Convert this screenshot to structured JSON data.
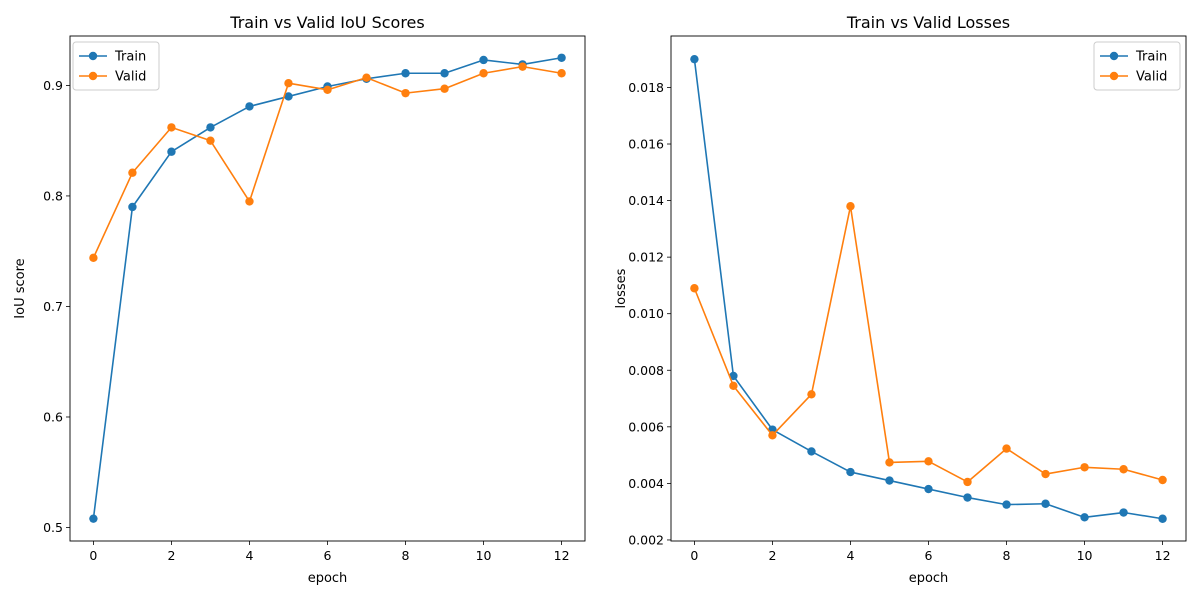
{
  "chart_data": [
    {
      "type": "line",
      "title": "Train vs Valid IoU Scores",
      "xlabel": "epoch",
      "ylabel": "IoU score",
      "x": [
        0,
        1,
        2,
        3,
        4,
        5,
        6,
        7,
        8,
        9,
        10,
        11,
        12
      ],
      "xlim": [
        -0.6,
        12.6
      ],
      "ylim": [
        0.4878,
        0.9447
      ],
      "xticks": [
        0,
        2,
        4,
        6,
        8,
        10,
        12
      ],
      "xtick_labels": [
        "0",
        "2",
        "4",
        "6",
        "8",
        "10",
        "12"
      ],
      "yticks": [
        0.5,
        0.6,
        0.7,
        0.8,
        0.9
      ],
      "ytick_labels": [
        "0.5",
        "0.6",
        "0.7",
        "0.8",
        "0.9"
      ],
      "legend_position": "top-left",
      "grid": false,
      "series": [
        {
          "name": "Train",
          "color": "#1f77b4",
          "marker": "circle",
          "values": [
            0.508,
            0.79,
            0.84,
            0.862,
            0.881,
            0.89,
            0.899,
            0.906,
            0.911,
            0.911,
            0.923,
            0.919,
            0.925
          ]
        },
        {
          "name": "Valid",
          "color": "#ff7f0e",
          "marker": "circle",
          "values": [
            0.744,
            0.821,
            0.862,
            0.85,
            0.795,
            0.902,
            0.896,
            0.907,
            0.893,
            0.897,
            0.911,
            0.917,
            0.911
          ]
        }
      ]
    },
    {
      "type": "line",
      "title": "Train vs Valid Losses",
      "xlabel": "epoch",
      "ylabel": "losses",
      "x": [
        0,
        1,
        2,
        3,
        4,
        5,
        6,
        7,
        8,
        9,
        10,
        11,
        12
      ],
      "xlim": [
        -0.6,
        12.6
      ],
      "ylim": [
        0.001963,
        0.019819
      ],
      "xticks": [
        0,
        2,
        4,
        6,
        8,
        10,
        12
      ],
      "xtick_labels": [
        "0",
        "2",
        "4",
        "6",
        "8",
        "10",
        "12"
      ],
      "yticks": [
        0.002,
        0.004,
        0.006,
        0.008,
        0.01,
        0.012,
        0.014,
        0.016,
        0.018
      ],
      "ytick_labels": [
        "0.002",
        "0.004",
        "0.006",
        "0.008",
        "0.010",
        "0.012",
        "0.014",
        "0.016",
        "0.018"
      ],
      "legend_position": "top-right",
      "grid": false,
      "series": [
        {
          "name": "Train",
          "color": "#1f77b4",
          "marker": "circle",
          "values": [
            0.019,
            0.0078,
            0.0059,
            0.00513,
            0.0044,
            0.0041,
            0.0038,
            0.0035,
            0.00325,
            0.00328,
            0.0028,
            0.00297,
            0.00275
          ]
        },
        {
          "name": "Valid",
          "color": "#ff7f0e",
          "marker": "circle",
          "values": [
            0.0109,
            0.00745,
            0.0057,
            0.00715,
            0.0138,
            0.00474,
            0.00478,
            0.00405,
            0.00523,
            0.00433,
            0.00457,
            0.0045,
            0.00412
          ]
        }
      ]
    }
  ]
}
